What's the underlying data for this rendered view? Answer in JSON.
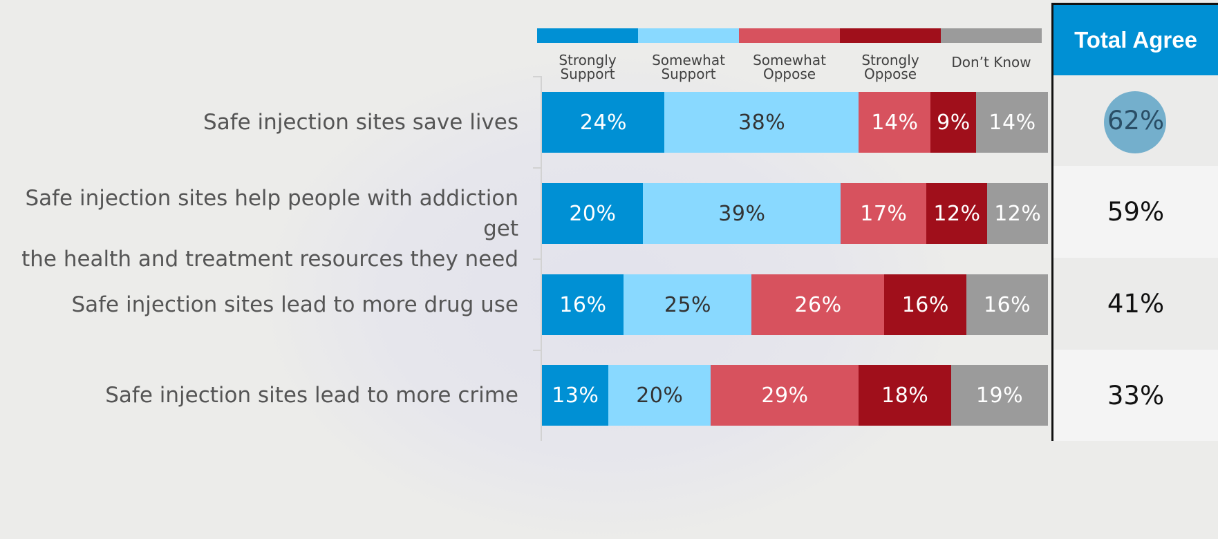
{
  "colors": {
    "strongly_support": "#0090d4",
    "somewhat_support": "#89d9ff",
    "somewhat_oppose": "#d7525e",
    "strongly_oppose": "#a00f1b",
    "dont_know": "#9b9b9b",
    "total_header": "#0090d4",
    "highlight_circle": "#74afcc"
  },
  "chart_data": {
    "type": "bar",
    "orientation": "horizontal",
    "stacked": true,
    "categories": [
      "Safe injection sites save lives",
      "Safe injection sites help people with addiction get the health and treatment resources they need",
      "Safe injection sites lead to more drug use",
      "Safe injection sites lead to more crime"
    ],
    "series": [
      {
        "name": "Strongly Support",
        "values": [
          24,
          20,
          16,
          13
        ]
      },
      {
        "name": "Somewhat Support",
        "values": [
          38,
          39,
          25,
          20
        ]
      },
      {
        "name": "Somewhat Oppose",
        "values": [
          14,
          17,
          26,
          29
        ]
      },
      {
        "name": "Strongly Oppose",
        "values": [
          9,
          12,
          16,
          18
        ]
      },
      {
        "name": "Don’t Know",
        "values": [
          14,
          12,
          16,
          19
        ]
      }
    ],
    "legend_position": "top",
    "value_unit": "%",
    "total_agree": {
      "title": "Total Agree",
      "values": [
        "62%",
        "59%",
        "41%",
        "33%"
      ],
      "highlighted_index": 0
    }
  }
}
